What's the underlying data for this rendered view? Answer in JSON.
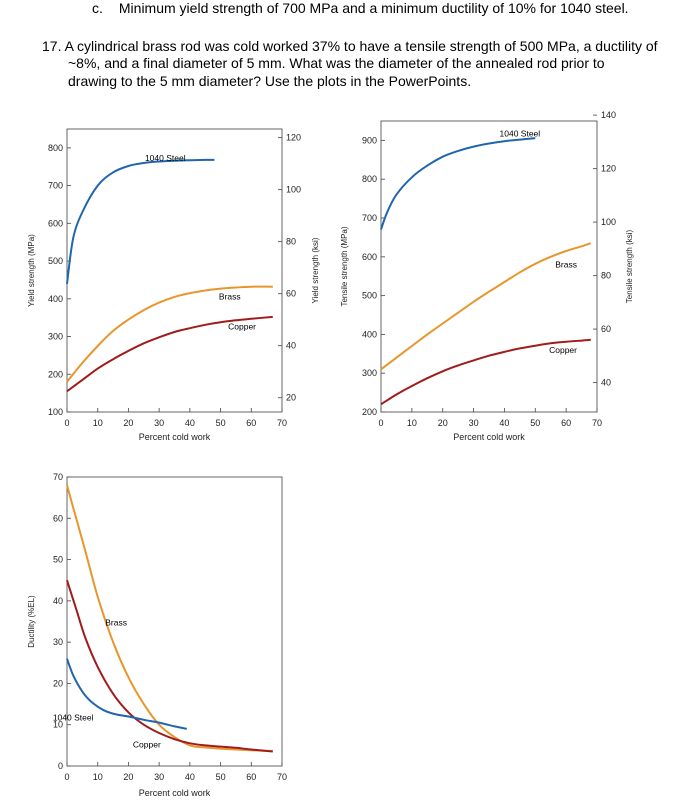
{
  "question_c": {
    "marker": "c.",
    "text": "Minimum yield strength of 700 MPa and a minimum ductility of 10% for 1040 steel."
  },
  "question_17": {
    "line1": "17. A cylindrical brass rod was cold worked 37% to have a tensile strength of 500 MPa, a ductility of",
    "line2": "~8%, and a final diameter of 5 mm.  What was the diameter of the annealed rod prior to",
    "line3": "drawing to the 5 mm diameter?  Use the plots in the PowerPoints."
  },
  "colors": {
    "steel": "#2166ac",
    "brass": "#e8962c",
    "copper": "#a01c1c"
  },
  "chart_data": [
    {
      "type": "line",
      "xlabel": "Percent cold work",
      "ylabel": "Yield strength (MPa)",
      "ylabel_right": "Yield strength (ksi)",
      "xlim": [
        0,
        70
      ],
      "ylim": [
        100,
        850
      ],
      "ylim_right_ksi": [
        14.5,
        123.3
      ],
      "xticks": [
        0,
        10,
        20,
        30,
        40,
        50,
        60,
        70
      ],
      "yticks": [
        100,
        200,
        300,
        400,
        500,
        600,
        700,
        800
      ],
      "yticks_right": [
        20,
        40,
        60,
        80,
        100,
        120
      ],
      "series": [
        {
          "name": "1040 Steel",
          "color": "#2166ac",
          "x": [
            0,
            2,
            5,
            10,
            15,
            20,
            25,
            30,
            35,
            40,
            45,
            48
          ],
          "y": [
            440,
            560,
            630,
            700,
            735,
            752,
            760,
            764,
            766,
            767,
            768,
            768
          ]
        },
        {
          "name": "Brass",
          "color": "#e8962c",
          "x": [
            0,
            5,
            10,
            15,
            20,
            25,
            30,
            35,
            40,
            45,
            50,
            55,
            60,
            67
          ],
          "y": [
            180,
            230,
            275,
            315,
            345,
            370,
            390,
            405,
            415,
            422,
            427,
            430,
            432,
            432
          ]
        },
        {
          "name": "Copper",
          "color": "#a01c1c",
          "x": [
            0,
            5,
            10,
            15,
            20,
            25,
            30,
            35,
            40,
            45,
            50,
            55,
            60,
            67
          ],
          "y": [
            155,
            185,
            215,
            240,
            262,
            282,
            298,
            312,
            322,
            331,
            338,
            343,
            347,
            352
          ]
        }
      ],
      "labels": [
        {
          "text": "1040 Steel",
          "x": 32,
          "y": 765
        },
        {
          "text": "Brass",
          "x": 53,
          "y": 398
        },
        {
          "text": "Copper",
          "x": 57,
          "y": 318
        }
      ]
    },
    {
      "type": "line",
      "xlabel": "Percent cold work",
      "ylabel": "Tensile strength (MPa)",
      "ylabel_right": "Tensile strength (ksi)",
      "xlim": [
        0,
        70
      ],
      "ylim": [
        200,
        950
      ],
      "ylim_right_ksi": [
        29,
        137.8
      ],
      "xticks": [
        0,
        10,
        20,
        30,
        40,
        50,
        60,
        70
      ],
      "yticks": [
        200,
        300,
        400,
        500,
        600,
        700,
        800,
        900
      ],
      "yticks_right": [
        40,
        60,
        80,
        100,
        120,
        140
      ],
      "series": [
        {
          "name": "1040 Steel",
          "color": "#2166ac",
          "x": [
            0,
            2,
            5,
            10,
            15,
            20,
            25,
            30,
            35,
            40,
            45,
            50
          ],
          "y": [
            670,
            715,
            760,
            805,
            835,
            858,
            873,
            884,
            892,
            898,
            902,
            906
          ]
        },
        {
          "name": "Brass",
          "color": "#e8962c",
          "x": [
            0,
            5,
            10,
            15,
            20,
            25,
            30,
            35,
            40,
            45,
            50,
            55,
            60,
            65,
            68
          ],
          "y": [
            310,
            340,
            370,
            400,
            428,
            456,
            484,
            510,
            535,
            560,
            582,
            600,
            615,
            627,
            635
          ]
        },
        {
          "name": "Copper",
          "color": "#a01c1c",
          "x": [
            0,
            5,
            10,
            15,
            20,
            25,
            30,
            35,
            40,
            45,
            50,
            55,
            60,
            65,
            68
          ],
          "y": [
            220,
            245,
            267,
            287,
            305,
            320,
            333,
            345,
            355,
            364,
            371,
            377,
            381,
            384,
            386
          ]
        }
      ],
      "labels": [
        {
          "text": "1040 Steel",
          "x": 45,
          "y": 910
        },
        {
          "text": "Brass",
          "x": 60,
          "y": 573
        },
        {
          "text": "Copper",
          "x": 59,
          "y": 352
        }
      ]
    },
    {
      "type": "line",
      "xlabel": "Percent cold work",
      "ylabel": "Ductility (%EL)",
      "xlim": [
        0,
        70
      ],
      "ylim": [
        0,
        70
      ],
      "xticks": [
        0,
        10,
        20,
        30,
        40,
        50,
        60,
        70
      ],
      "yticks": [
        0,
        10,
        20,
        30,
        40,
        50,
        60,
        70
      ],
      "series": [
        {
          "name": "Brass",
          "color": "#e8962c",
          "x": [
            0,
            3,
            6,
            10,
            15,
            20,
            25,
            30,
            35,
            40,
            45,
            50,
            55,
            60,
            67
          ],
          "y": [
            68,
            60,
            52,
            41,
            30,
            21.5,
            15,
            10,
            7,
            5,
            4.5,
            4.2,
            4,
            3.8,
            3.6
          ]
        },
        {
          "name": "Copper",
          "color": "#a01c1c",
          "x": [
            0,
            3,
            6,
            10,
            15,
            20,
            25,
            30,
            35,
            40,
            45,
            50,
            55,
            60,
            67
          ],
          "y": [
            45,
            38,
            31,
            24,
            17.5,
            13,
            10,
            8,
            6.5,
            5.5,
            5,
            4.7,
            4.4,
            4,
            3.5
          ]
        },
        {
          "name": "1040 Steel",
          "color": "#2166ac",
          "x": [
            0,
            2,
            5,
            8,
            12,
            16,
            20,
            25,
            30,
            35,
            39
          ],
          "y": [
            26,
            22,
            18,
            15.5,
            13.5,
            12.5,
            12,
            11.2,
            10.5,
            9.6,
            9
          ]
        }
      ],
      "labels": [
        {
          "text": "Brass",
          "x": 16,
          "y": 34
        },
        {
          "text": "1040 Steel",
          "x": 2,
          "y": 11
        },
        {
          "text": "Copper",
          "x": 26,
          "y": 4.5
        }
      ]
    }
  ]
}
